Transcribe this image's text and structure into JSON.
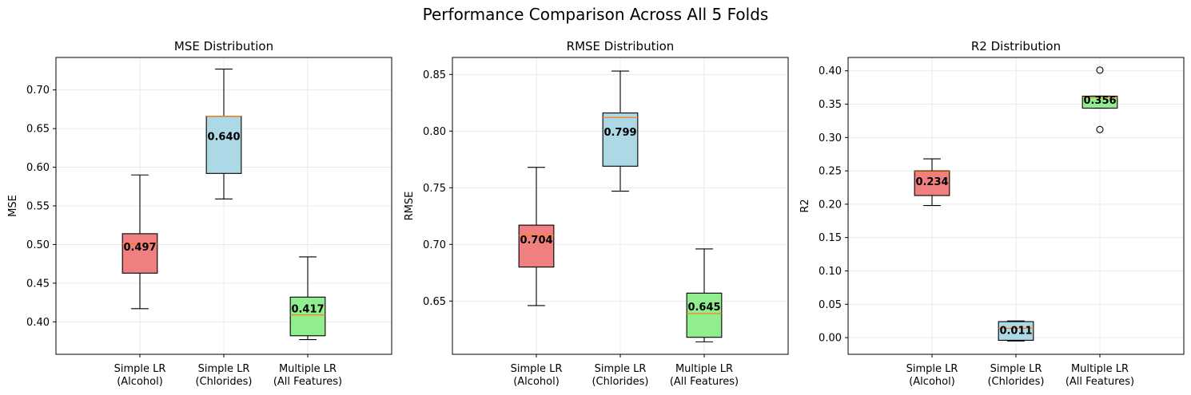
{
  "suptitle": "Performance Comparison Across All 5 Folds",
  "chart_data": [
    {
      "type": "box",
      "title": "MSE Distribution",
      "xlabel": "",
      "ylabel": "MSE",
      "categories": [
        "Simple LR\n(Alcohol)",
        "Simple LR\n(Chlorides)",
        "Multiple LR\n(All Features)"
      ],
      "colors": [
        "#f08080",
        "#add8e6",
        "#90ee90"
      ],
      "median_color": "#ff7f0e",
      "ylim": [
        0.358,
        0.742
      ],
      "yticks": [
        "0.40",
        "0.45",
        "0.50",
        "0.55",
        "0.60",
        "0.65",
        "0.70"
      ],
      "grid": true,
      "boxes": [
        {
          "whislo": 0.417,
          "q1": 0.463,
          "med": 0.501,
          "q3": 0.514,
          "whishi": 0.59,
          "fliers": [],
          "mean": 0.497,
          "mean_label": "0.497"
        },
        {
          "whislo": 0.559,
          "q1": 0.592,
          "med": 0.666,
          "q3": 0.666,
          "whishi": 0.727,
          "fliers": [],
          "mean": 0.64,
          "mean_label": "0.640"
        },
        {
          "whislo": 0.377,
          "q1": 0.382,
          "med": 0.409,
          "q3": 0.432,
          "whishi": 0.484,
          "fliers": [],
          "mean": 0.417,
          "mean_label": "0.417"
        }
      ]
    },
    {
      "type": "box",
      "title": "RMSE Distribution",
      "xlabel": "",
      "ylabel": "RMSE",
      "categories": [
        "Simple LR\n(Alcohol)",
        "Simple LR\n(Chlorides)",
        "Multiple LR\n(All Features)"
      ],
      "colors": [
        "#f08080",
        "#add8e6",
        "#90ee90"
      ],
      "median_color": "#ff7f0e",
      "ylim": [
        0.603,
        0.865
      ],
      "yticks": [
        "0.65",
        "0.70",
        "0.75",
        "0.80",
        "0.85"
      ],
      "grid": true,
      "boxes": [
        {
          "whislo": 0.646,
          "q1": 0.68,
          "med": 0.708,
          "q3": 0.717,
          "whishi": 0.768,
          "fliers": [],
          "mean": 0.704,
          "mean_label": "0.704"
        },
        {
          "whislo": 0.747,
          "q1": 0.769,
          "med": 0.812,
          "q3": 0.816,
          "whishi": 0.853,
          "fliers": [],
          "mean": 0.799,
          "mean_label": "0.799"
        },
        {
          "whislo": 0.614,
          "q1": 0.618,
          "med": 0.639,
          "q3": 0.657,
          "whishi": 0.696,
          "fliers": [],
          "mean": 0.645,
          "mean_label": "0.645"
        }
      ]
    },
    {
      "type": "box",
      "title": "R2 Distribution",
      "xlabel": "",
      "ylabel": "R2",
      "categories": [
        "Simple LR\n(Alcohol)",
        "Simple LR\n(Chlorides)",
        "Multiple LR\n(All Features)"
      ],
      "colors": [
        "#f08080",
        "#add8e6",
        "#90ee90"
      ],
      "median_color": "#ff7f0e",
      "ylim": [
        -0.025,
        0.42
      ],
      "yticks": [
        "0.00",
        "0.05",
        "0.10",
        "0.15",
        "0.20",
        "0.25",
        "0.30",
        "0.35",
        "0.40"
      ],
      "grid": true,
      "boxes": [
        {
          "whislo": 0.198,
          "q1": 0.213,
          "med": 0.249,
          "q3": 0.25,
          "whishi": 0.268,
          "fliers": [],
          "mean": 0.234,
          "mean_label": "0.234"
        },
        {
          "whislo": -0.005,
          "q1": -0.004,
          "med": 0.014,
          "q3": 0.024,
          "whishi": 0.025,
          "fliers": [],
          "mean": 0.011,
          "mean_label": "0.011"
        },
        {
          "whislo": 0.344,
          "q1": 0.344,
          "med": 0.36,
          "q3": 0.362,
          "whishi": 0.362,
          "fliers": [
            0.401,
            0.312
          ],
          "mean": 0.356,
          "mean_label": "0.356"
        }
      ]
    }
  ]
}
